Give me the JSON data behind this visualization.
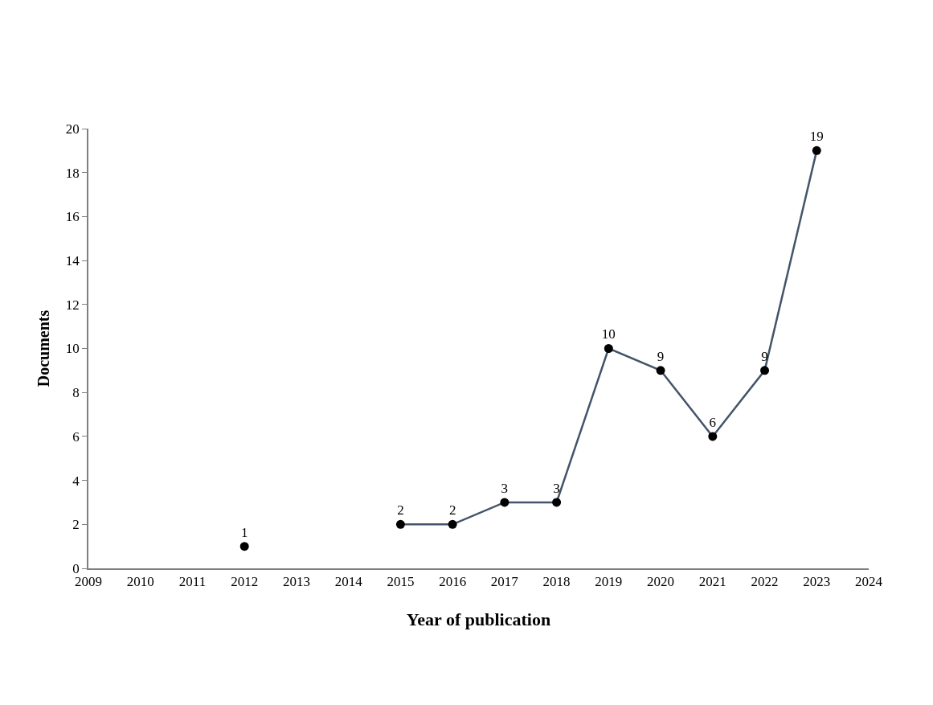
{
  "chart_data": {
    "type": "line",
    "xlabel": "Year of publication",
    "ylabel": "Documents",
    "x": [
      2012,
      2013,
      2014,
      2015,
      2016,
      2017,
      2018,
      2019,
      2020,
      2021,
      2022,
      2023
    ],
    "series": [
      {
        "color": "#44546a",
        "colors": [
          "#000000",
          null,
          null,
          "#000000",
          "#000000",
          "#000000",
          "#000000",
          "#000000",
          "#000000",
          "#000000",
          "#000000",
          "#000000"
        ],
        "values": [
          1,
          null,
          null,
          2,
          2,
          3,
          3,
          10,
          9,
          6,
          9,
          19
        ]
      }
    ],
    "xlim": [
      2009,
      2024
    ],
    "xticks": [
      2009,
      2010,
      2011,
      2012,
      2013,
      2014,
      2015,
      2016,
      2017,
      2018,
      2019,
      2020,
      2021,
      2022,
      2023,
      2024
    ],
    "ylim": [
      0,
      20
    ],
    "yticks": [
      0,
      2,
      4,
      6,
      8,
      10,
      12,
      14,
      16,
      18,
      20
    ],
    "data_labels": true,
    "marker": "circle",
    "line_style": "solid"
  }
}
